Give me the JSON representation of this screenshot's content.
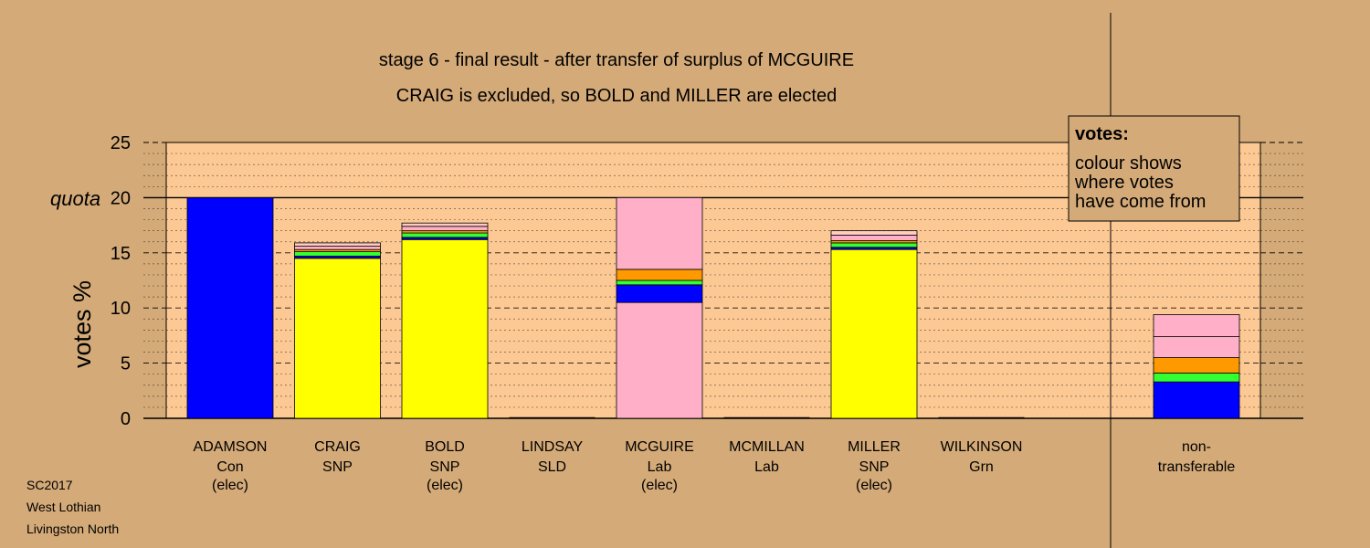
{
  "colors": {
    "page_background": "#d4aa78",
    "plot_background": "#fcc994",
    "Con": "#0000ff",
    "SNP": "#ffff00",
    "Green": "#33ff33",
    "SLD": "#ff9900",
    "Lab": "#ffb0c8",
    "Other": "#ffccc0"
  },
  "chart_data": {
    "type": "bar",
    "stacked": true,
    "title": "stage 6 - final result - after transfer of surplus of MCGUIRE",
    "subtitle": "CRAIG is excluded, so BOLD and MILLER are elected",
    "ylabel": "votes %",
    "ylim": [
      0,
      25
    ],
    "yticks": [
      0,
      5,
      10,
      15,
      20,
      25
    ],
    "quota": {
      "value": 20,
      "label": "quota"
    },
    "grid": "dashed at 5, dotted at 1",
    "legend": {
      "position": "top-right",
      "title": "votes:",
      "lines": [
        "colour shows",
        "where votes",
        "have come from"
      ]
    },
    "candidates": [
      {
        "name": "ADAMSON",
        "party": "Con",
        "note": "(elec)",
        "segments": [
          {
            "color": "#0000ff",
            "value": 20.0
          }
        ]
      },
      {
        "name": "CRAIG",
        "party": "SNP",
        "note": "",
        "segments": [
          {
            "color": "#ffff00",
            "value": 14.5
          },
          {
            "color": "#0000ff",
            "value": 0.2
          },
          {
            "color": "#33ff33",
            "value": 0.4
          },
          {
            "color": "#ff9900",
            "value": 0.2
          },
          {
            "color": "#ffb0c8",
            "value": 0.3
          },
          {
            "color": "#ffccc0",
            "value": 0.3
          }
        ]
      },
      {
        "name": "BOLD",
        "party": "SNP",
        "note": "(elec)",
        "segments": [
          {
            "color": "#ffff00",
            "value": 16.2
          },
          {
            "color": "#0000ff",
            "value": 0.2
          },
          {
            "color": "#33ff33",
            "value": 0.4
          },
          {
            "color": "#ff9900",
            "value": 0.2
          },
          {
            "color": "#ffb0c8",
            "value": 0.4
          },
          {
            "color": "#ffccc0",
            "value": 0.3
          }
        ]
      },
      {
        "name": "LINDSAY",
        "party": "SLD",
        "note": "",
        "segments": []
      },
      {
        "name": "MCGUIRE",
        "party": "Lab",
        "note": "(elec)",
        "segments": [
          {
            "color": "#ffb0c8",
            "value": 10.5
          },
          {
            "color": "#0000ff",
            "value": 1.6
          },
          {
            "color": "#33ff33",
            "value": 0.4
          },
          {
            "color": "#ff9900",
            "value": 1.0
          },
          {
            "color": "#ffb0c8",
            "value": 6.5
          }
        ]
      },
      {
        "name": "MCMILLAN",
        "party": "Lab",
        "note": "",
        "segments": []
      },
      {
        "name": "MILLER",
        "party": "SNP",
        "note": "(elec)",
        "segments": [
          {
            "color": "#ffff00",
            "value": 15.3
          },
          {
            "color": "#0000ff",
            "value": 0.2
          },
          {
            "color": "#33ff33",
            "value": 0.4
          },
          {
            "color": "#ff9900",
            "value": 0.2
          },
          {
            "color": "#ffb0c8",
            "value": 0.5
          },
          {
            "color": "#ffccc0",
            "value": 0.4
          }
        ]
      },
      {
        "name": "WILKINSON",
        "party": "Grn",
        "note": "",
        "segments": []
      }
    ],
    "nontransferable": {
      "label_line1": "non-",
      "label_line2": "transferable",
      "segments": [
        {
          "color": "#0000ff",
          "value": 3.3
        },
        {
          "color": "#33ff33",
          "value": 0.8
        },
        {
          "color": "#ff9900",
          "value": 1.4
        },
        {
          "color": "#ffb0c8",
          "value": 1.9
        },
        {
          "color": "#ffb0c8",
          "value": 2.0
        }
      ]
    }
  },
  "footer": {
    "line1": "SC2017",
    "line2": "West Lothian",
    "line3": "Livingston North"
  }
}
